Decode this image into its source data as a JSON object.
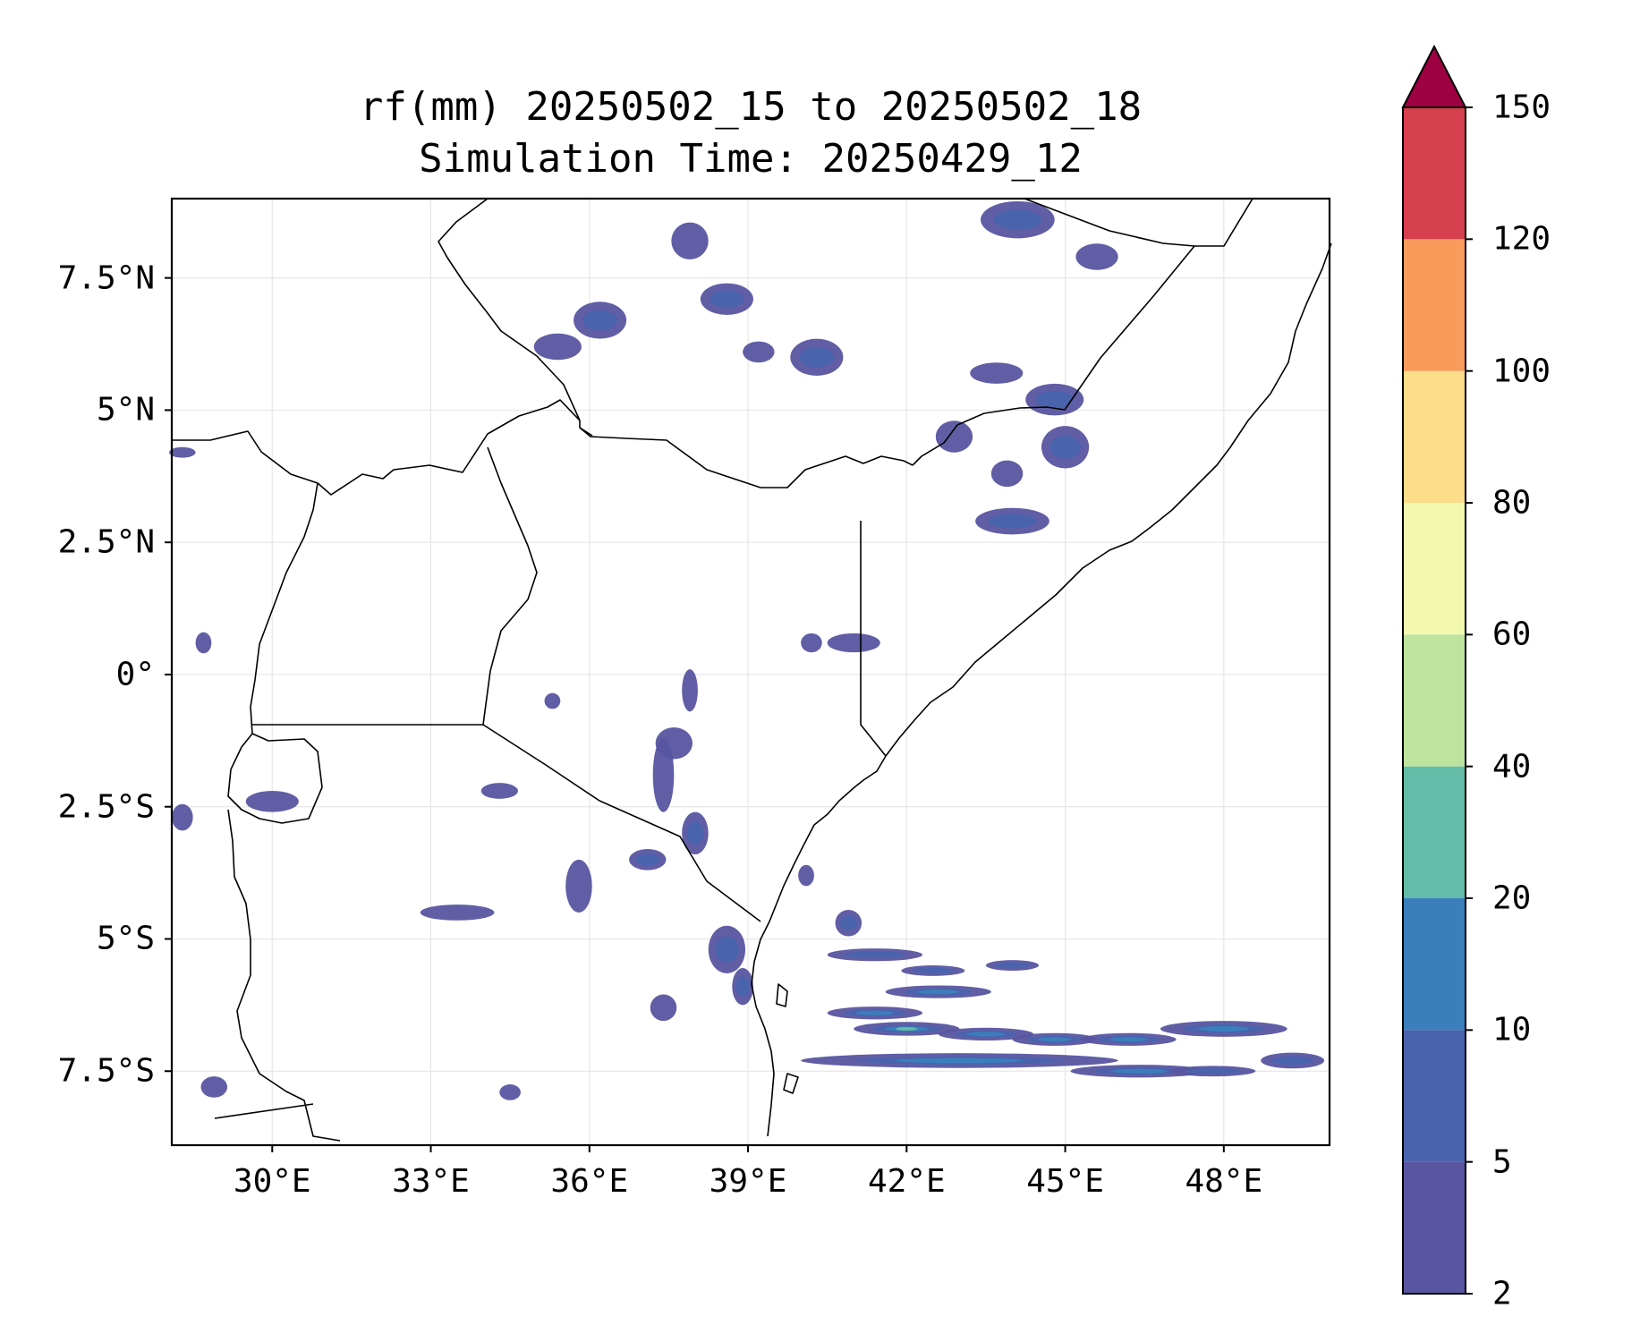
{
  "title": {
    "line1": "rf(mm) 20250502_15 to 20250502_18",
    "line2": "Simulation Time: 20250429_12"
  },
  "map": {
    "extent": {
      "lon": [
        28.1,
        50
      ],
      "lat": [
        -8.9,
        9
      ]
    },
    "lat_ticks": [
      {
        "value": 7.5,
        "label": "7.5°N"
      },
      {
        "value": 5,
        "label": "5°N"
      },
      {
        "value": 2.5,
        "label": "2.5°N"
      },
      {
        "value": 0,
        "label": "0°"
      },
      {
        "value": -2.5,
        "label": "2.5°S"
      },
      {
        "value": -5,
        "label": "5°S"
      },
      {
        "value": -7.5,
        "label": "7.5°S"
      }
    ],
    "lon_ticks": [
      {
        "value": 30,
        "label": "30°E"
      },
      {
        "value": 33,
        "label": "33°E"
      },
      {
        "value": 36,
        "label": "36°E"
      },
      {
        "value": 39,
        "label": "39°E"
      },
      {
        "value": 42,
        "label": "42°E"
      },
      {
        "value": 45,
        "label": "45°E"
      },
      {
        "value": 48,
        "label": "48°E"
      }
    ],
    "grid": true
  },
  "colorbar": {
    "levels": [
      2,
      5,
      10,
      20,
      40,
      60,
      80,
      100,
      120,
      150
    ],
    "labels": [
      "2",
      "5",
      "10",
      "20",
      "40",
      "60",
      "80",
      "100",
      "120",
      "150"
    ],
    "colors": [
      "#5955a0",
      "#4a63ad",
      "#3a7fbb",
      "#63bca8",
      "#bde39e",
      "#f2f8ae",
      "#fbdd8a",
      "#f99b5a",
      "#d63f4e"
    ],
    "extend_color": "#9e0142",
    "extend": "max"
  },
  "rain_cells": [
    {
      "lon": 36.2,
      "lat": 6.7,
      "rx": 0.5,
      "ry": 0.35,
      "level": 1
    },
    {
      "lon": 35.4,
      "lat": 6.2,
      "rx": 0.45,
      "ry": 0.25,
      "level": 0
    },
    {
      "lon": 38.6,
      "lat": 7.1,
      "rx": 0.5,
      "ry": 0.3,
      "level": 1
    },
    {
      "lon": 37.9,
      "lat": 8.2,
      "rx": 0.35,
      "ry": 0.35,
      "level": 0
    },
    {
      "lon": 40.3,
      "lat": 6.0,
      "rx": 0.5,
      "ry": 0.35,
      "level": 1
    },
    {
      "lon": 39.2,
      "lat": 6.1,
      "rx": 0.3,
      "ry": 0.2,
      "level": 0
    },
    {
      "lon": 44.1,
      "lat": 8.6,
      "rx": 0.7,
      "ry": 0.35,
      "level": 1
    },
    {
      "lon": 45.6,
      "lat": 7.9,
      "rx": 0.4,
      "ry": 0.25,
      "level": 0
    },
    {
      "lon": 43.7,
      "lat": 5.7,
      "rx": 0.5,
      "ry": 0.2,
      "level": 0
    },
    {
      "lon": 44.8,
      "lat": 5.2,
      "rx": 0.55,
      "ry": 0.3,
      "level": 1
    },
    {
      "lon": 45.0,
      "lat": 4.3,
      "rx": 0.45,
      "ry": 0.4,
      "level": 1
    },
    {
      "lon": 42.9,
      "lat": 4.5,
      "rx": 0.35,
      "ry": 0.3,
      "level": 0
    },
    {
      "lon": 44.0,
      "lat": 2.9,
      "rx": 0.7,
      "ry": 0.25,
      "level": 1
    },
    {
      "lon": 43.9,
      "lat": 3.8,
      "rx": 0.3,
      "ry": 0.25,
      "level": 0
    },
    {
      "lon": 41.0,
      "lat": 0.6,
      "rx": 0.5,
      "ry": 0.18,
      "level": 0
    },
    {
      "lon": 40.2,
      "lat": 0.6,
      "rx": 0.2,
      "ry": 0.18,
      "level": 0
    },
    {
      "lon": 37.6,
      "lat": -1.3,
      "rx": 0.35,
      "ry": 0.3,
      "level": 0
    },
    {
      "lon": 37.4,
      "lat": -1.9,
      "rx": 0.2,
      "ry": 0.7,
      "level": 0
    },
    {
      "lon": 37.9,
      "lat": -0.3,
      "rx": 0.15,
      "ry": 0.4,
      "level": 0
    },
    {
      "lon": 38.0,
      "lat": -3.0,
      "rx": 0.25,
      "ry": 0.4,
      "level": 1
    },
    {
      "lon": 37.1,
      "lat": -3.5,
      "rx": 0.35,
      "ry": 0.2,
      "level": 1
    },
    {
      "lon": 35.8,
      "lat": -4.0,
      "rx": 0.25,
      "ry": 0.5,
      "level": 0
    },
    {
      "lon": 34.3,
      "lat": -2.2,
      "rx": 0.35,
      "ry": 0.15,
      "level": 0
    },
    {
      "lon": 33.5,
      "lat": -4.5,
      "rx": 0.7,
      "ry": 0.15,
      "level": 0
    },
    {
      "lon": 35.3,
      "lat": -0.5,
      "rx": 0.15,
      "ry": 0.15,
      "level": 0
    },
    {
      "lon": 38.6,
      "lat": -5.2,
      "rx": 0.35,
      "ry": 0.45,
      "level": 1
    },
    {
      "lon": 38.9,
      "lat": -5.9,
      "rx": 0.2,
      "ry": 0.35,
      "level": 1
    },
    {
      "lon": 37.4,
      "lat": -6.3,
      "rx": 0.25,
      "ry": 0.25,
      "level": 0
    },
    {
      "lon": 30.0,
      "lat": -2.4,
      "rx": 0.5,
      "ry": 0.2,
      "level": 0
    },
    {
      "lon": 28.3,
      "lat": -2.7,
      "rx": 0.2,
      "ry": 0.25,
      "level": 0
    },
    {
      "lon": 28.3,
      "lat": 4.2,
      "rx": 0.25,
      "ry": 0.1,
      "level": 0
    },
    {
      "lon": 28.7,
      "lat": 0.6,
      "rx": 0.15,
      "ry": 0.2,
      "level": 0
    },
    {
      "lon": 28.9,
      "lat": -7.8,
      "rx": 0.25,
      "ry": 0.2,
      "level": 0
    },
    {
      "lon": 34.5,
      "lat": -7.9,
      "rx": 0.2,
      "ry": 0.15,
      "level": 0
    },
    {
      "lon": 41.4,
      "lat": -5.3,
      "rx": 0.9,
      "ry": 0.12,
      "level": 1
    },
    {
      "lon": 42.6,
      "lat": -6.0,
      "rx": 1.0,
      "ry": 0.12,
      "level": 2
    },
    {
      "lon": 41.4,
      "lat": -6.4,
      "rx": 0.9,
      "ry": 0.12,
      "level": 2
    },
    {
      "lon": 42.0,
      "lat": -6.7,
      "rx": 1.0,
      "ry": 0.13,
      "level": 3
    },
    {
      "lon": 43.5,
      "lat": -6.8,
      "rx": 0.9,
      "ry": 0.12,
      "level": 2
    },
    {
      "lon": 44.8,
      "lat": -6.9,
      "rx": 0.8,
      "ry": 0.12,
      "level": 2
    },
    {
      "lon": 46.2,
      "lat": -6.9,
      "rx": 0.9,
      "ry": 0.12,
      "level": 2
    },
    {
      "lon": 48.0,
      "lat": -6.7,
      "rx": 1.2,
      "ry": 0.15,
      "level": 2
    },
    {
      "lon": 49.3,
      "lat": -7.3,
      "rx": 0.6,
      "ry": 0.15,
      "level": 1
    },
    {
      "lon": 43.0,
      "lat": -7.3,
      "rx": 3.0,
      "ry": 0.14,
      "level": 2
    },
    {
      "lon": 46.4,
      "lat": -7.5,
      "rx": 1.3,
      "ry": 0.12,
      "level": 2
    },
    {
      "lon": 47.8,
      "lat": -7.5,
      "rx": 0.8,
      "ry": 0.1,
      "level": 1
    },
    {
      "lon": 42.5,
      "lat": -5.6,
      "rx": 0.6,
      "ry": 0.1,
      "level": 1
    },
    {
      "lon": 44.0,
      "lat": -5.5,
      "rx": 0.5,
      "ry": 0.1,
      "level": 1
    },
    {
      "lon": 40.9,
      "lat": -4.7,
      "rx": 0.25,
      "ry": 0.25,
      "level": 1
    },
    {
      "lon": 40.1,
      "lat": -3.8,
      "rx": 0.15,
      "ry": 0.2,
      "level": 0
    }
  ]
}
